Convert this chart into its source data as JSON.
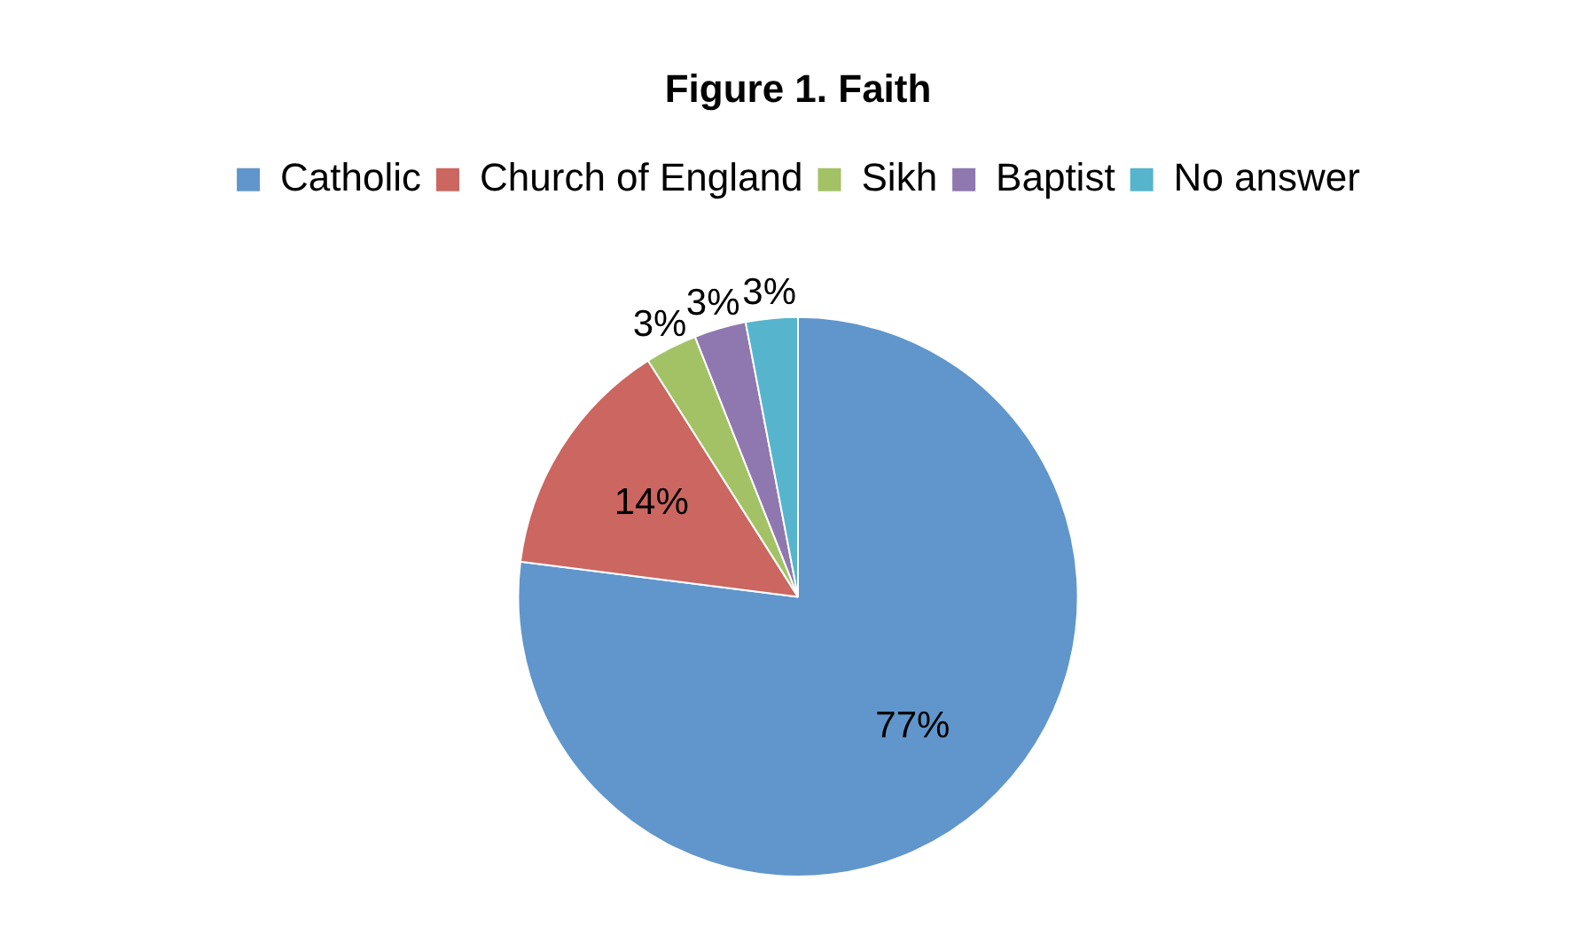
{
  "chart_data": {
    "type": "pie",
    "title": "Figure 1. Faith",
    "categories": [
      "Catholic",
      "Church of England",
      "Sikh",
      "Baptist",
      "No answer"
    ],
    "values": [
      77,
      14,
      3,
      3,
      3
    ],
    "value_labels": [
      "77%",
      "14%",
      "3%",
      "3%",
      "3%"
    ],
    "colors": [
      "#6096cb",
      "#cc6660",
      "#a3c266",
      "#8f78b0",
      "#56b5cc"
    ],
    "legend": "top"
  }
}
